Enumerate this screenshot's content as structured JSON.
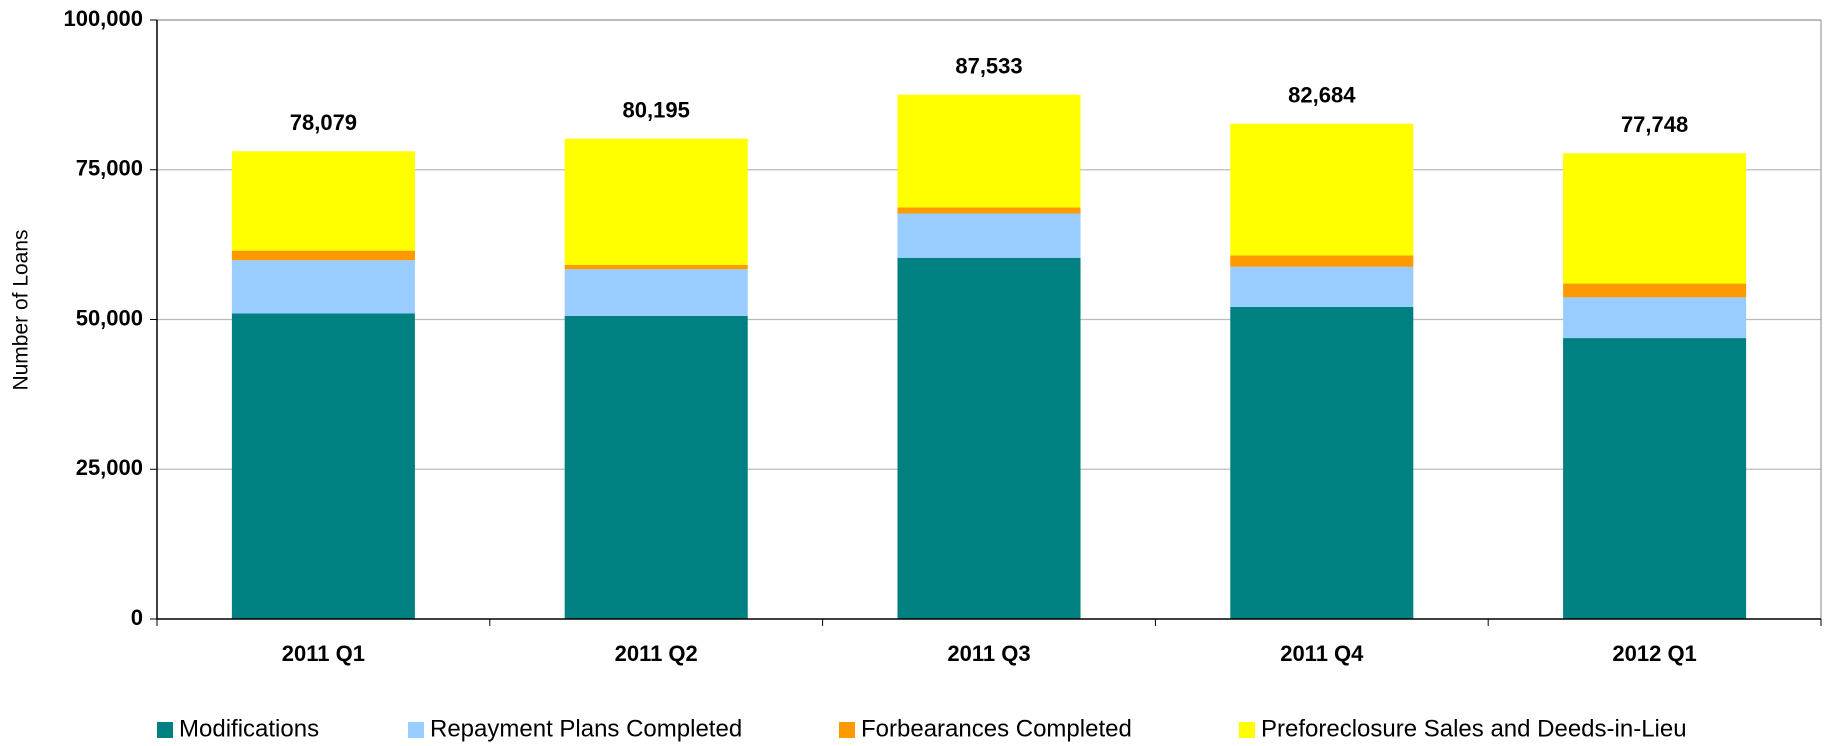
{
  "chart_data": {
    "type": "stacked-bar",
    "y_label": "Number of Loans",
    "categories": [
      "2011 Q1",
      "2011 Q2",
      "2011 Q3",
      "2011 Q4",
      "2012 Q1"
    ],
    "series": [
      {
        "name": "Modifications",
        "color": "#008080",
        "values": [
          51000,
          50600,
          60300,
          52100,
          46900
        ]
      },
      {
        "name": "Repayment Plans Completed",
        "color": "#99ccff",
        "values": [
          8900,
          7800,
          7400,
          6700,
          6800
        ]
      },
      {
        "name": "Forbearances Completed",
        "color": "#ff9900",
        "values": [
          1600,
          700,
          1000,
          1900,
          2300
        ]
      },
      {
        "name": "Preforeclosure Sales and Deeds-in-Lieu",
        "color": "#ffff00",
        "values": [
          16579,
          21095,
          18833,
          21984,
          21748
        ]
      }
    ],
    "totals": {
      "values": [
        78079,
        80195,
        87533,
        82684,
        77748
      ],
      "value_labels": [
        "78,079",
        "80,195",
        "87,533",
        "82,684",
        "77,748"
      ]
    },
    "ylim": [
      0,
      100000
    ],
    "yticks": [
      0,
      {
        "value": 25000,
        "label": "25,000"
      },
      {
        "value": 50000,
        "label": "50,000"
      },
      {
        "value": 75000,
        "label": "75,000"
      },
      {
        "value": 100000,
        "label": "100,000"
      }
    ],
    "grid": true,
    "legend": "bottom"
  }
}
